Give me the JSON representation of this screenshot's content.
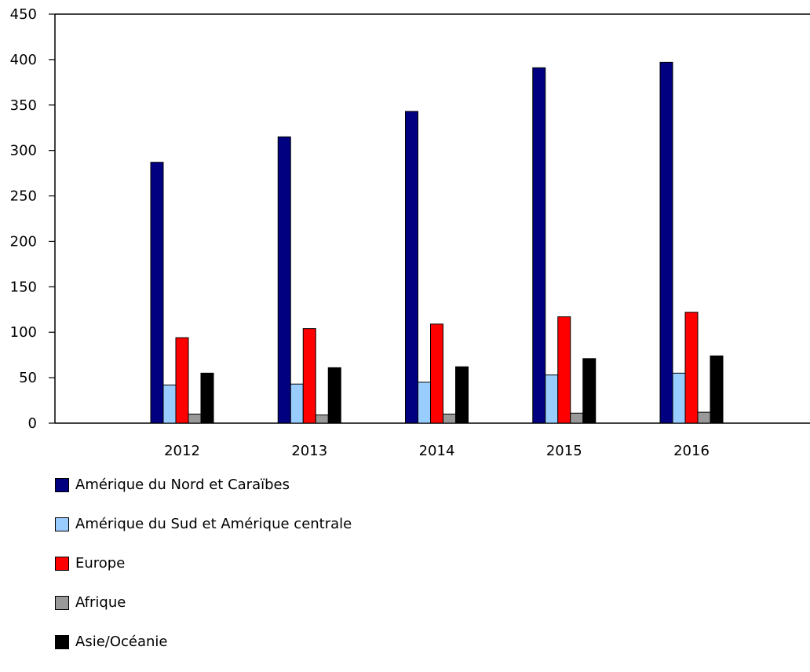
{
  "chart_data": {
    "type": "bar",
    "categories": [
      "2012",
      "2013",
      "2014",
      "2015",
      "2016"
    ],
    "series": [
      {
        "name": "Amérique du Nord et Caraïbes",
        "color": "#000080",
        "values": [
          287,
          315,
          343,
          391,
          397
        ]
      },
      {
        "name": "Amérique du Sud et Amérique centrale",
        "color": "#99ccff",
        "values": [
          42,
          43,
          45,
          53,
          55
        ]
      },
      {
        "name": "Europe",
        "color": "#ff0000",
        "values": [
          94,
          104,
          109,
          117,
          122
        ]
      },
      {
        "name": "Afrique",
        "color": "#999999",
        "values": [
          10,
          9,
          10,
          11,
          12
        ]
      },
      {
        "name": "Asie/Océanie",
        "color": "#000000",
        "values": [
          55,
          61,
          62,
          71,
          74
        ]
      }
    ],
    "title": "",
    "xlabel": "",
    "ylabel": "",
    "ylim": [
      0,
      450
    ],
    "yticks": [
      "0",
      "50",
      "100",
      "150",
      "200",
      "250",
      "300",
      "350",
      "400",
      "450"
    ],
    "grid": false,
    "legend_position": "bottom-left"
  }
}
